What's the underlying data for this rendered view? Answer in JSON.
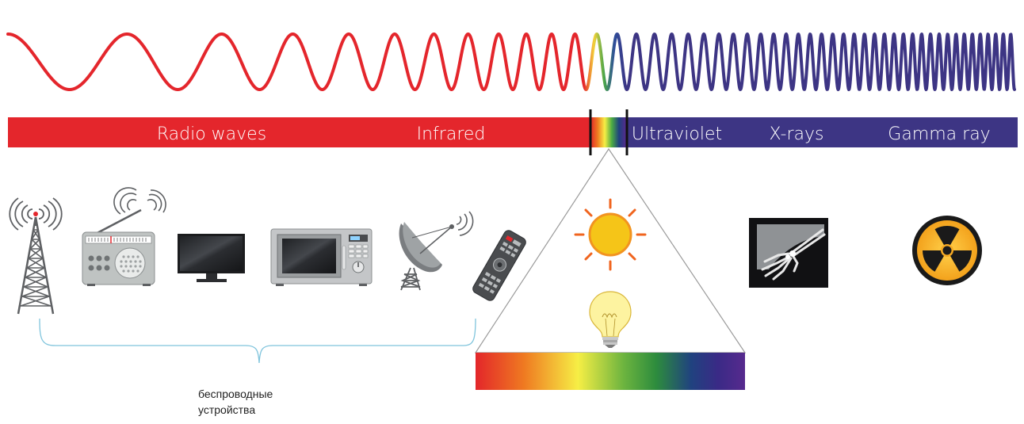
{
  "bands": [
    {
      "label": "Radio waves"
    },
    {
      "label": "Infrared"
    },
    {
      "label": "Ultraviolet"
    },
    {
      "label": "X-rays"
    },
    {
      "label": "Gamma ray"
    }
  ],
  "brace_caption": [
    "беспроводные",
    "устройства"
  ],
  "colors": {
    "long_wave": "#e4262c",
    "short_wave": "#3d3584",
    "spectrum": [
      "#e3262a",
      "#ef7a21",
      "#f6ee45",
      "#6cb43f",
      "#2d8c3d",
      "#20427f",
      "#3a2a86",
      "#572a8e"
    ],
    "brace": "#7fc4dc",
    "device_gray": "#5e6063"
  },
  "icons": [
    "radio-tower-icon",
    "radio-receiver-icon",
    "tv-icon",
    "microwave-icon",
    "satellite-dish-icon",
    "remote-control-icon",
    "sun-icon",
    "light-bulb-icon",
    "xray-hand-icon",
    "radiation-icon"
  ]
}
